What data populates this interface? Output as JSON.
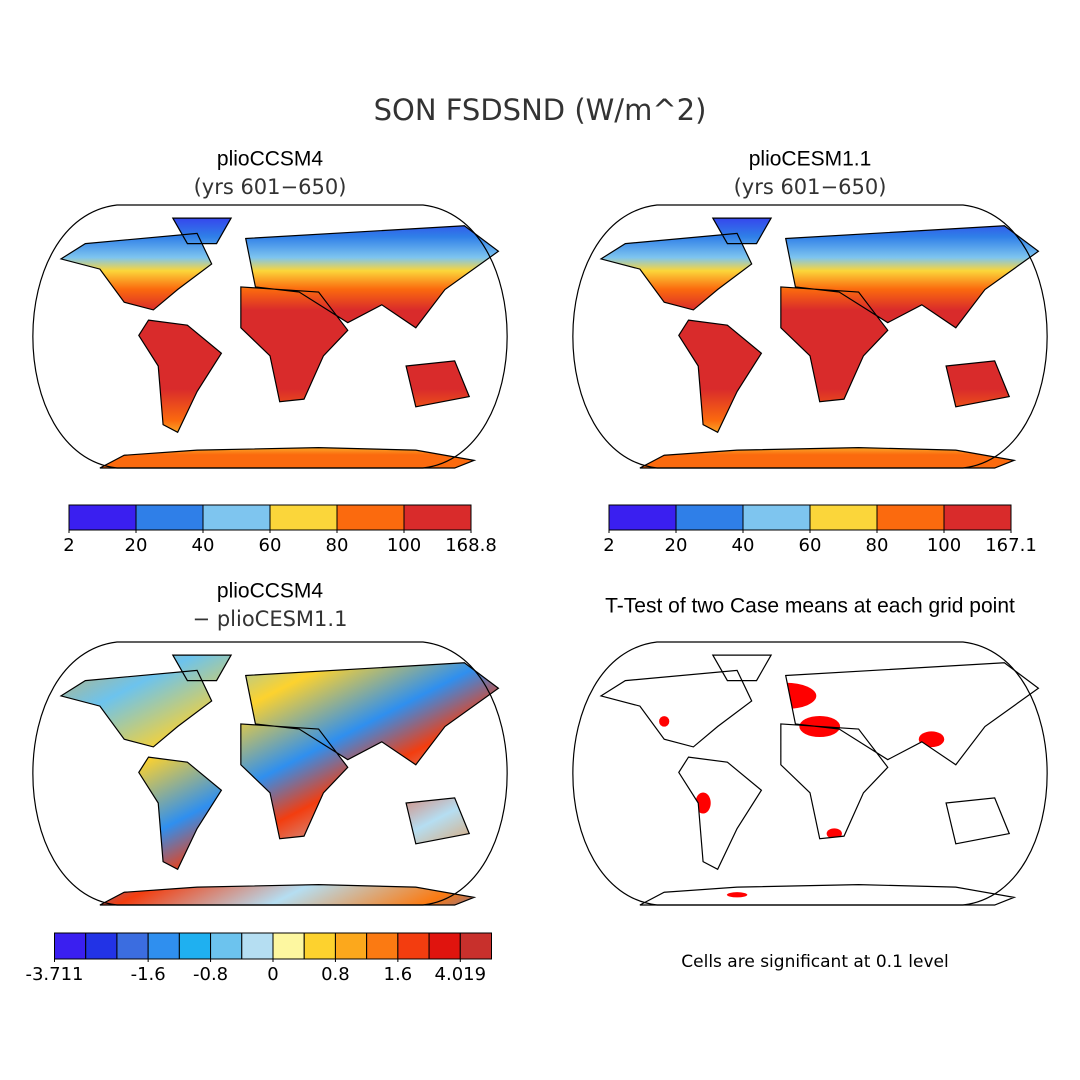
{
  "title": "SON FSDSND (W/m^2)",
  "panels": [
    {
      "title": "plioCCSM4",
      "subtitle": "(yrs 601−650)",
      "colorbar": {
        "colors": [
          "#3a1ff0",
          "#2f7fe8",
          "#7ec5ef",
          "#fbd63a",
          "#fb6a0e",
          "#d92b2b"
        ],
        "boundaries": [
          2,
          20,
          40,
          60,
          80,
          100,
          168.8
        ]
      }
    },
    {
      "title": "plioCESM1.1",
      "subtitle": "(yrs 601−650)",
      "colorbar": {
        "colors": [
          "#3a1ff0",
          "#2f7fe8",
          "#7ec5ef",
          "#fbd63a",
          "#fb6a0e",
          "#d92b2b"
        ],
        "boundaries": [
          2,
          20,
          40,
          60,
          80,
          100,
          167.1
        ]
      }
    },
    {
      "title": "plioCCSM4",
      "subtitle": "− plioCESM1.1",
      "colorbar": {
        "colors": [
          "#3a1ff0",
          "#2233e6",
          "#3b6de0",
          "#2f8fef",
          "#1fb0f0",
          "#6cc3ee",
          "#b5def2",
          "#fdf7a0",
          "#fdd22e",
          "#fca81c",
          "#fb7a12",
          "#f33d0f",
          "#e0140e",
          "#c8302c"
        ],
        "boundaries": [
          -3.711,
          null,
          null,
          -1.6,
          null,
          -0.8,
          null,
          0,
          null,
          0.8,
          null,
          1.6,
          null,
          4.019
        ]
      }
    },
    {
      "title": "T-Test of two Case means at each grid point",
      "note": "Cells are significant at 0.1 level"
    }
  ]
}
